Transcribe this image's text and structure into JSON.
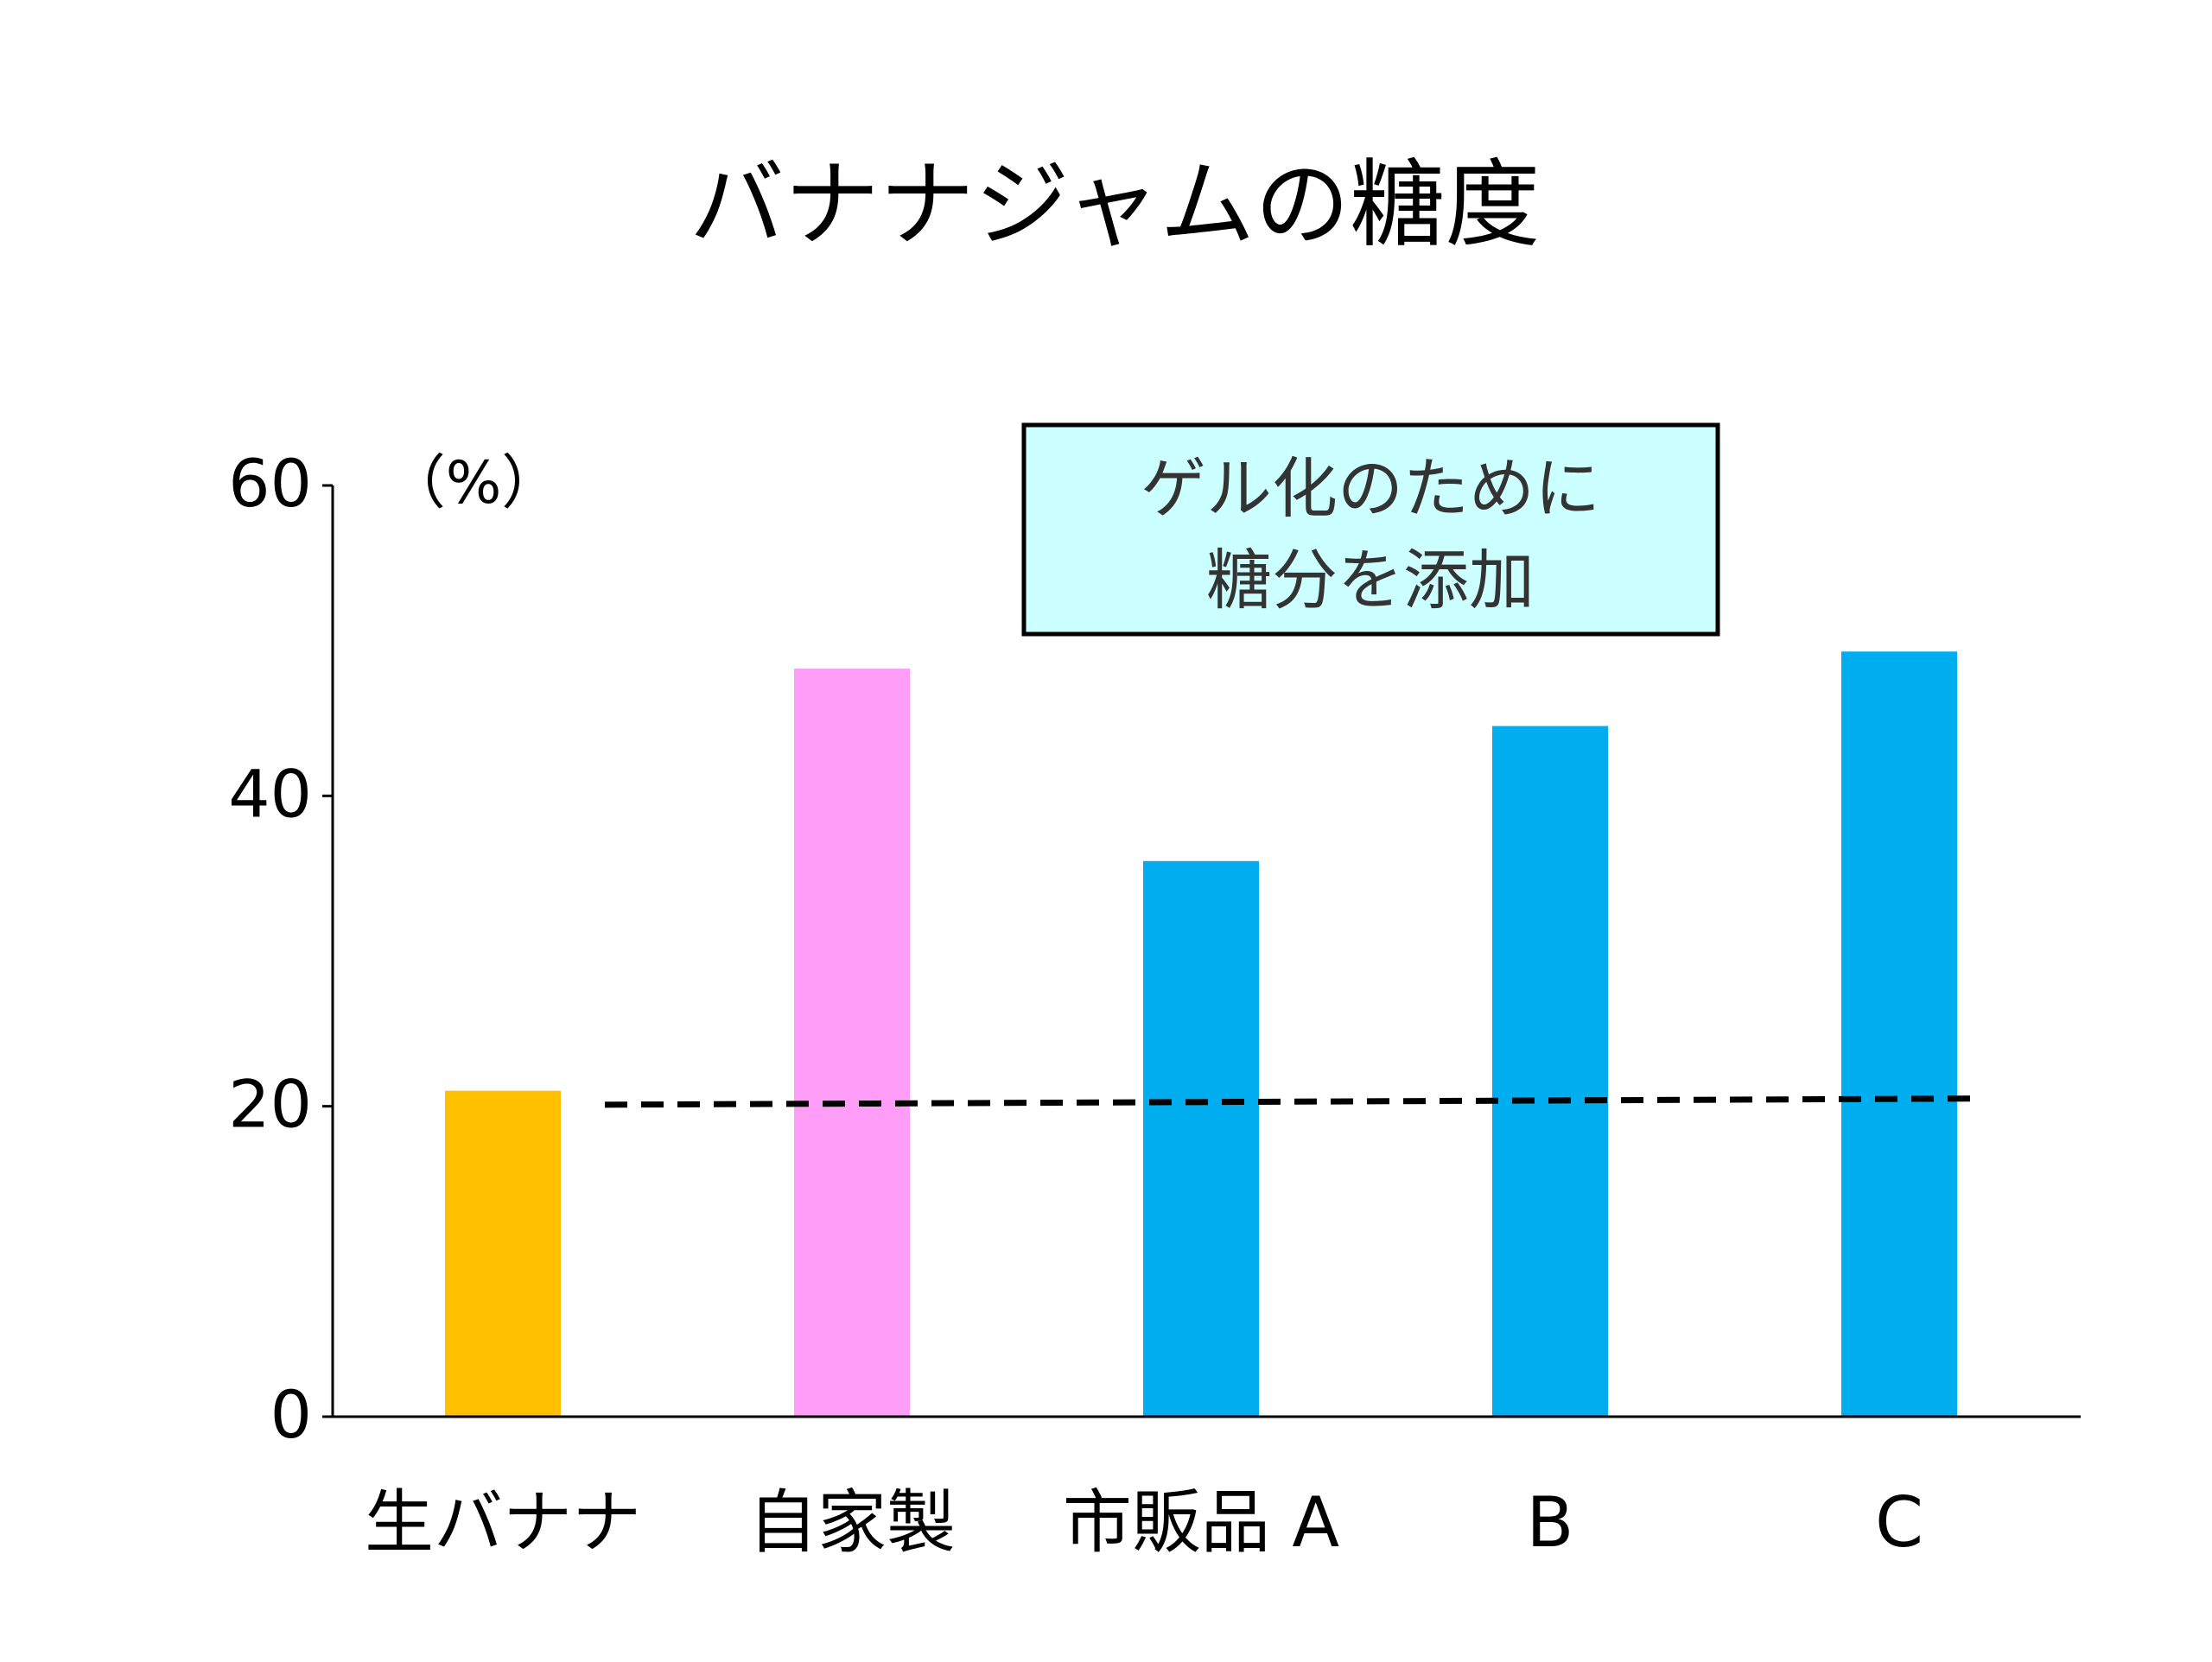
{
  "chart_data": {
    "type": "bar",
    "title": "バナナジャムの糖度",
    "ylabel": "（%）",
    "xlabel": "",
    "ylim": [
      0,
      60
    ],
    "y_ticks": [
      "0",
      "20",
      "40",
      "60"
    ],
    "categories": [
      "生バナナ",
      "自家製",
      "市販品 A",
      "B",
      "C"
    ],
    "values": [
      21,
      48.2,
      35.8,
      44.5,
      49.3
    ],
    "bar_colors": [
      "#FFC000",
      "#FF9DF7",
      "#00AEEF",
      "#00AEEF",
      "#00AEEF"
    ],
    "reference_line": {
      "style": "dashed",
      "color": "#000000",
      "values": [
        20.1,
        20.5
      ]
    },
    "annotation": {
      "lines": [
        "ゲル化のために",
        "糖分を添加"
      ],
      "background": "#CCFFFF",
      "border": "#000000"
    },
    "grid": false,
    "legend": "none"
  }
}
